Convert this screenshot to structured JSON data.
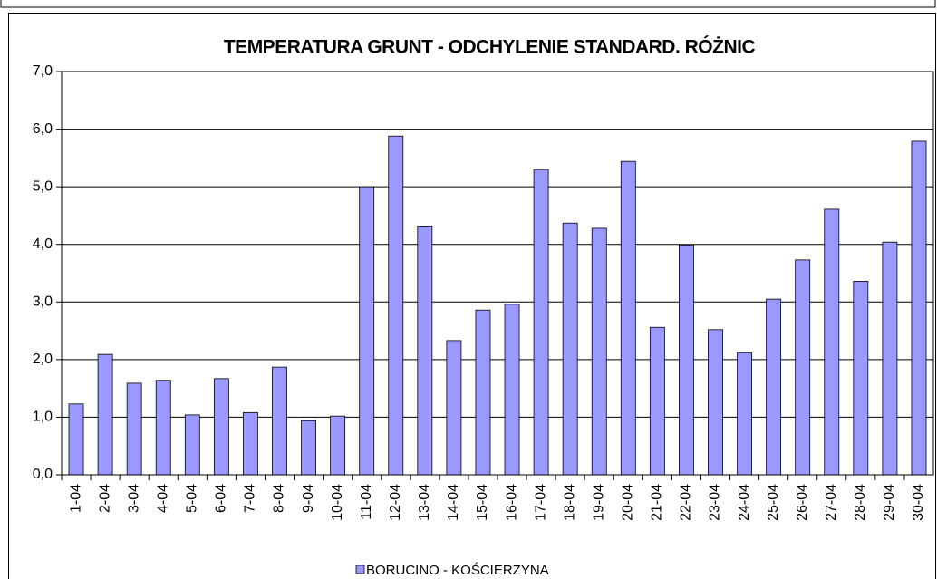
{
  "chart_data": {
    "type": "bar",
    "title": "TEMPERATURA GRUNT - ODCHYLENIE STANDARD. RÓŻNIC",
    "categories": [
      "1-04",
      "2-04",
      "3-04",
      "4-04",
      "5-04",
      "6-04",
      "7-04",
      "8-04",
      "9-04",
      "10-04",
      "11-04",
      "12-04",
      "13-04",
      "14-04",
      "15-04",
      "16-04",
      "17-04",
      "18-04",
      "19-04",
      "20-04",
      "21-04",
      "22-04",
      "23-04",
      "24-04",
      "25-04",
      "26-04",
      "27-04",
      "28-04",
      "29-04",
      "30-04"
    ],
    "series": [
      {
        "name": "BORUCINO  - KOŚCIERZYNA",
        "color": "#9999ff",
        "values": [
          1.23,
          2.09,
          1.59,
          1.64,
          1.04,
          1.67,
          1.08,
          1.87,
          0.94,
          1.02,
          5.0,
          5.88,
          4.32,
          2.33,
          2.86,
          2.96,
          5.3,
          4.37,
          4.28,
          5.44,
          2.56,
          3.99,
          2.52,
          2.12,
          3.05,
          3.73,
          4.61,
          3.36,
          4.04,
          5.79
        ]
      }
    ],
    "ylim": [
      0,
      7
    ],
    "yticks": [
      {
        "value": 0,
        "label": "0,0"
      },
      {
        "value": 1,
        "label": "1,0"
      },
      {
        "value": 2,
        "label": "2,0"
      },
      {
        "value": 3,
        "label": "3,0"
      },
      {
        "value": 4,
        "label": "4,0"
      },
      {
        "value": 5,
        "label": "5,0"
      },
      {
        "value": 6,
        "label": "6,0"
      },
      {
        "value": 7,
        "label": "7,0"
      }
    ],
    "grid": true,
    "legend": "bottom"
  }
}
